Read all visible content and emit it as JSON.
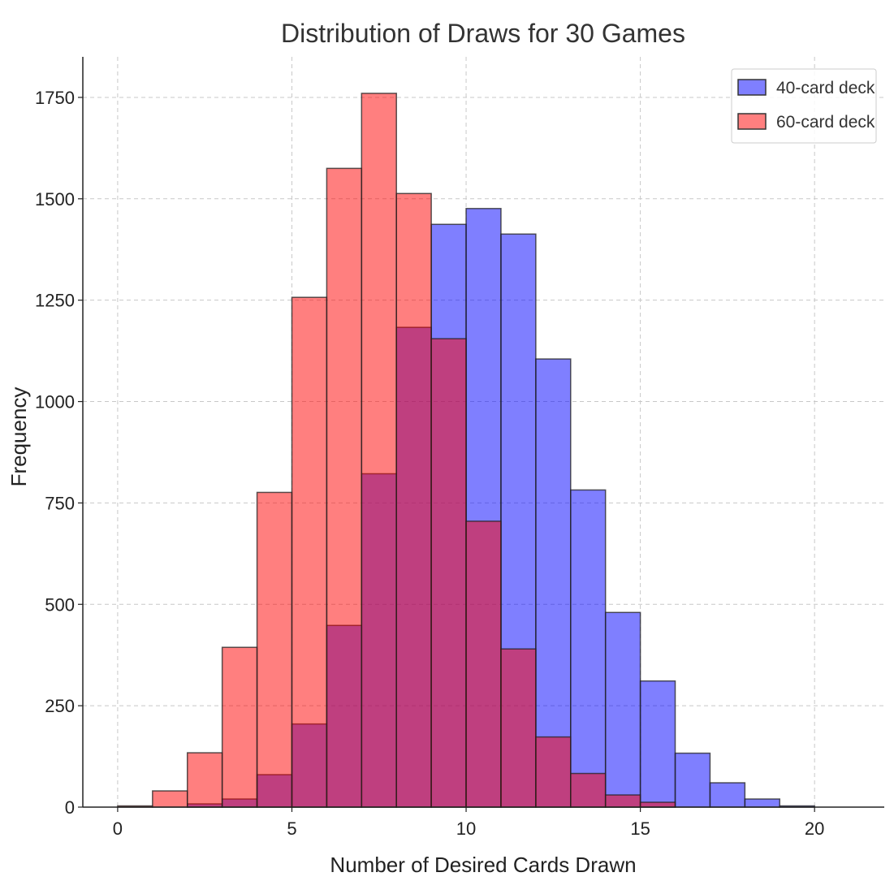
{
  "chart_data": {
    "type": "bar",
    "title": "Distribution of Draws for 30 Games",
    "xlabel": "Number of Desired Cards Drawn",
    "ylabel": "Frequency",
    "xlim": [
      -1,
      22
    ],
    "ylim": [
      0,
      1850
    ],
    "grid": true,
    "legend_position": "top-right",
    "x_ticks": [
      0,
      5,
      10,
      15,
      20
    ],
    "y_ticks": [
      0,
      250,
      500,
      750,
      1000,
      1250,
      1500,
      1750
    ],
    "bin_edges": [
      0,
      1,
      2,
      3,
      4,
      5,
      6,
      7,
      8,
      9,
      10,
      11,
      12,
      13,
      14,
      15,
      16,
      17,
      18,
      19,
      20,
      21
    ],
    "series": [
      {
        "name": "40-card deck",
        "color": "#0000ff",
        "opacity": 0.5,
        "values": [
          0,
          0,
          8,
          20,
          80,
          205,
          448,
          822,
          1183,
          1437,
          1476,
          1413,
          1105,
          782,
          480,
          311,
          133,
          60,
          20,
          3,
          0
        ]
      },
      {
        "name": "60-card deck",
        "color": "#ff0000",
        "opacity": 0.5,
        "values": [
          3,
          40,
          134,
          394,
          776,
          1257,
          1575,
          1760,
          1513,
          1155,
          705,
          390,
          173,
          83,
          30,
          12,
          0,
          0,
          0,
          0,
          0
        ]
      }
    ]
  }
}
